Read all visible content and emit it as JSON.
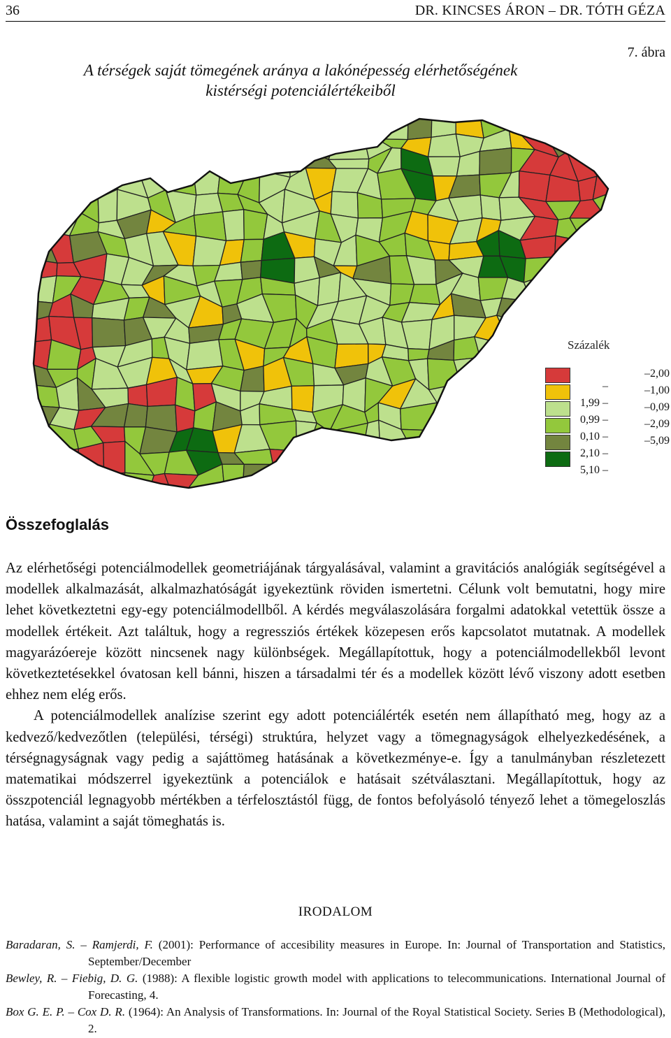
{
  "header": {
    "page_number": "36",
    "running_head": "DR. KINCSES ÁRON – DR. TÓTH GÉZA"
  },
  "figure": {
    "number": "7. ábra",
    "title_line1": "A térségek saját tömegének aránya a lakónépesség elérhetőségének",
    "title_line2": "kistérségi potenciálértékeiből"
  },
  "legend": {
    "title": "Százalék",
    "classes": [
      {
        "low": "",
        "high": "2,00",
        "color": "#d63a3a"
      },
      {
        "low": "1,99",
        "high": "1,00",
        "color": "#f0c20a"
      },
      {
        "low": "0,99",
        "high": "0,09",
        "color": "#bde08d"
      },
      {
        "low": "0,10",
        "high": "2,09",
        "color": "#93c83c"
      },
      {
        "low": "2,10",
        "high": "5,09",
        "color": "#73853f"
      },
      {
        "low": "5,10",
        "high": "",
        "color": "#0d6b12"
      }
    ]
  },
  "section": {
    "title": "Összefoglalás",
    "paragraph1": "Az elérhetőségi potenciálmodellek geometriájának tárgyalásával, valamint a gravitációs analógiák segítségével a modellek alkalmazását, alkalmazhatóságát igyekeztünk röviden ismertetni. Célunk volt bemutatni, hogy mire lehet következtetni egy-egy potenciálmodellből. A kérdés megválaszolására forgalmi adatokkal vetettük össze a modellek értékeit. Azt találtuk, hogy a regressziós értékek közepesen erős kapcsolatot mutatnak. A modellek magyarázóereje között nincsenek nagy különbségek. Megállapítottuk, hogy a potenciálmodellekből levont következtetésekkel óvatosan kell bánni, hiszen a társadalmi tér és a modellek között lévő viszony adott esetben ehhez nem elég erős.",
    "paragraph2": "A potenciálmodellek analízise szerint egy adott potenciálérték esetén nem állapítható meg, hogy az a kedvező/kedvezőtlen (települési, térségi) struktúra, helyzet vagy a tömegnagyságok elhelyezkedésének, a térségnagyságnak vagy pedig a sajáttömeg hatásának a következménye-e. Így a tanulmányban részletezett matematikai módszerrel igyekeztünk a potenciálok e hatásait szétválasztani. Megállapítottuk, hogy az összpotenciál legnagyobb mértékben a térfelosztástól függ, de fontos befolyásoló tényező lehet a tömegeloszlás hatása, valamint a saját tömeghatás is."
  },
  "references": {
    "title": "IRODALOM",
    "items": [
      {
        "authors": "Baradaran, S. – Ramjerdi, F.",
        "text": " (2001): Performance of accesibility measures in Europe. In: Journal of Transportation and Statistics, September/December"
      },
      {
        "authors": "Bewley, R. – Fiebig, D. G.",
        "text": " (1988): A flexible logistic growth model with applications to telecommunications. International Journal of Forecasting, 4."
      },
      {
        "authors": "Box G. E. P. – Cox D. R.",
        "text": " (1964): An Analysis of Transformations. In: Journal of the Royal Statistical Society. Series B (Methodological), 2."
      }
    ]
  }
}
